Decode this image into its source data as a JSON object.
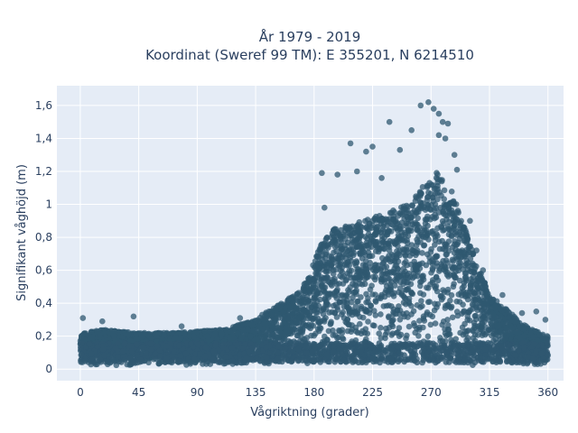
{
  "chart_data": {
    "type": "scatter",
    "title_line1": "År 1979 - 2019",
    "title_line2": "Koordinat (Sweref 99 TM): E 355201, N 6214510",
    "xlabel": "Vågriktning (grader)",
    "ylabel": "Signifikant våghöjd (m)",
    "xlim": [
      -18,
      372
    ],
    "ylim": [
      -0.07,
      1.72
    ],
    "x_ticks": [
      0,
      45,
      90,
      135,
      180,
      225,
      270,
      315,
      360
    ],
    "x_tick_labels": [
      "0",
      "45",
      "90",
      "135",
      "180",
      "225",
      "270",
      "315",
      "360"
    ],
    "y_ticks": [
      0,
      0.2,
      0.4,
      0.6,
      0.8,
      1,
      1.2,
      1.4,
      1.6
    ],
    "y_tick_labels": [
      "0",
      "0,2",
      "0,4",
      "0,6",
      "0,8",
      "1",
      "1,2",
      "1,4",
      "1,6"
    ],
    "grid": true,
    "colors": {
      "background": "#e5ecf6",
      "marker": "#2f5870",
      "grid": "#ffffff"
    },
    "envelope_upper": [
      [
        0,
        0.22
      ],
      [
        20,
        0.24
      ],
      [
        45,
        0.22
      ],
      [
        70,
        0.22
      ],
      [
        90,
        0.23
      ],
      [
        110,
        0.24
      ],
      [
        135,
        0.3
      ],
      [
        150,
        0.38
      ],
      [
        165,
        0.45
      ],
      [
        175,
        0.55
      ],
      [
        185,
        0.75
      ],
      [
        195,
        0.85
      ],
      [
        210,
        0.88
      ],
      [
        225,
        0.92
      ],
      [
        240,
        0.96
      ],
      [
        255,
        1.02
      ],
      [
        265,
        1.12
      ],
      [
        275,
        1.2
      ],
      [
        285,
        1.1
      ],
      [
        295,
        0.88
      ],
      [
        305,
        0.65
      ],
      [
        315,
        0.45
      ],
      [
        330,
        0.35
      ],
      [
        345,
        0.25
      ],
      [
        360,
        0.2
      ]
    ],
    "outliers": [
      [
        2,
        0.31
      ],
      [
        17,
        0.29
      ],
      [
        41,
        0.32
      ],
      [
        78,
        0.26
      ],
      [
        123,
        0.31
      ],
      [
        140,
        0.33
      ],
      [
        160,
        0.42
      ],
      [
        183,
        0.71
      ],
      [
        186,
        1.19
      ],
      [
        188,
        0.98
      ],
      [
        198,
        1.18
      ],
      [
        208,
        1.37
      ],
      [
        213,
        1.2
      ],
      [
        220,
        1.32
      ],
      [
        225,
        1.35
      ],
      [
        232,
        1.16
      ],
      [
        238,
        1.5
      ],
      [
        246,
        1.33
      ],
      [
        255,
        1.45
      ],
      [
        262,
        1.6
      ],
      [
        268,
        1.62
      ],
      [
        272,
        1.58
      ],
      [
        276,
        1.55
      ],
      [
        279,
        1.5
      ],
      [
        283,
        1.49
      ],
      [
        276,
        1.42
      ],
      [
        281,
        1.4
      ],
      [
        288,
        1.3
      ],
      [
        290,
        1.21
      ],
      [
        300,
        0.9
      ],
      [
        305,
        0.72
      ],
      [
        310,
        0.6
      ],
      [
        325,
        0.45
      ],
      [
        340,
        0.34
      ],
      [
        351,
        0.35
      ],
      [
        358,
        0.3
      ]
    ]
  }
}
